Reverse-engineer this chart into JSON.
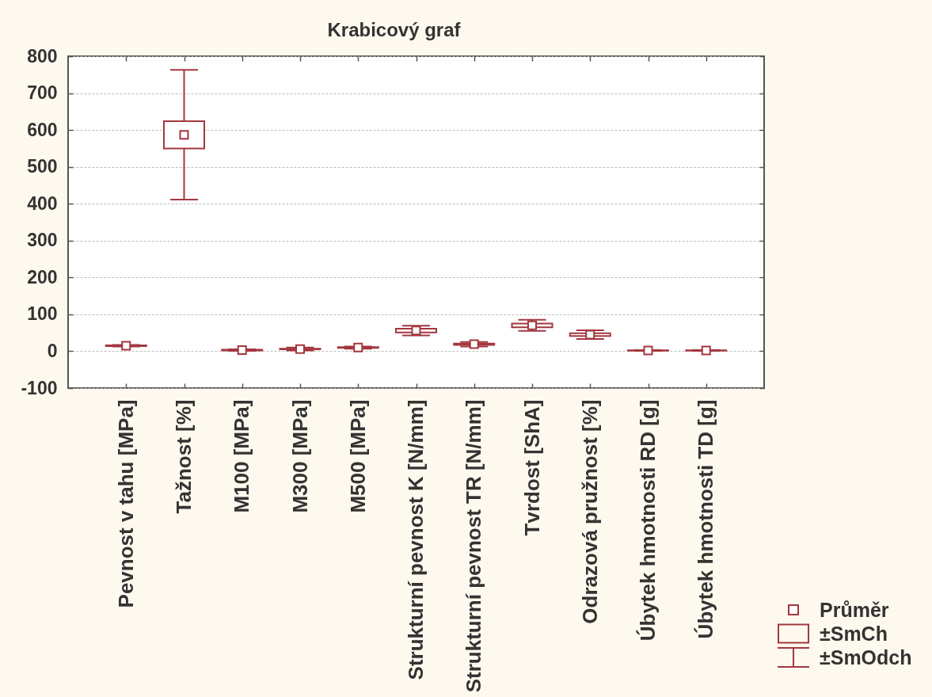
{
  "chart_data": {
    "type": "box",
    "title": "Krabicový graf",
    "categories": [
      "Pevnost v tahu [MPa]",
      "Tažnost [%]",
      "M100 [MPa]",
      "M300 [MPa]",
      "M500 [MPa]",
      "Strukturní pevnost K [N/mm]",
      "Strukturní pevnost TR [N/mm]",
      "Tvrdost [ShA]",
      "Odrazová pružnost [%]",
      "Úbytek hmotnosti RD [g]",
      "Úbytek hmotnosti TD [g]"
    ],
    "ylim": [
      -100,
      800
    ],
    "yticks": [
      -100,
      0,
      100,
      200,
      300,
      400,
      500,
      600,
      700,
      800
    ],
    "grid": "y",
    "marker": "square",
    "color": "#a3373f",
    "boxes": [
      {
        "low": 13,
        "q1": 14,
        "q3": 16,
        "high": 17,
        "mean": 15
      },
      {
        "low": 411,
        "q1": 550,
        "q3": 624,
        "high": 763,
        "mean": 587
      },
      {
        "low": 1,
        "q1": 2,
        "q3": 4,
        "high": 5,
        "mean": 3
      },
      {
        "low": 2,
        "q1": 5,
        "q3": 7,
        "high": 10,
        "mean": 6
      },
      {
        "low": 7,
        "q1": 9,
        "q3": 11,
        "high": 13,
        "mean": 10
      },
      {
        "low": 43,
        "q1": 51,
        "q3": 61,
        "high": 69,
        "mean": 56
      },
      {
        "low": 13,
        "q1": 17,
        "q3": 21,
        "high": 25,
        "mean": 19
      },
      {
        "low": 55,
        "q1": 65,
        "q3": 75,
        "high": 85,
        "mean": 70
      },
      {
        "low": 33,
        "q1": 41,
        "q3": 49,
        "high": 57,
        "mean": 45
      },
      {
        "low": 1,
        "q1": 1.5,
        "q3": 2.5,
        "high": 3,
        "mean": 2
      },
      {
        "low": 1,
        "q1": 1.5,
        "q3": 2.5,
        "high": 3,
        "mean": 2
      }
    ],
    "annotations": [
      "Průměr",
      "±SmCh",
      "±SmOdch"
    ]
  }
}
